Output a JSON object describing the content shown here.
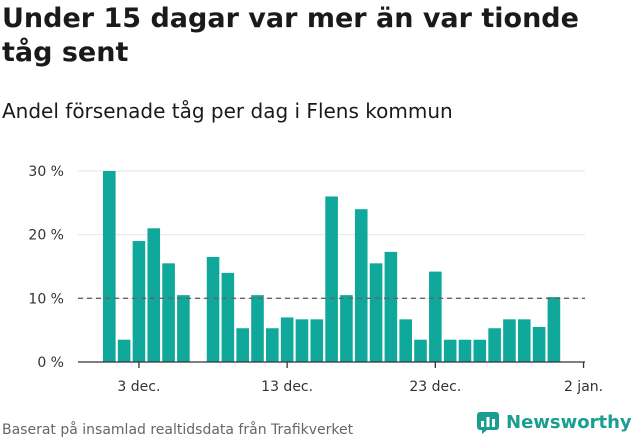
{
  "title": "Under 15 dagar var mer än var tionde tåg sent",
  "subtitle": "Andel försenade tåg per dag i Flens kommun",
  "footer": "Baserat på insamlad realtidsdata från Trafikverket",
  "brand": {
    "name": "Newsworthy",
    "icon": "newsworthy-logo-icon",
    "color": "#1a9e8f"
  },
  "colors": {
    "bar": "#0fa89b",
    "reference_line": "#666666",
    "axis": "#333333",
    "grid": "#e6e6e6"
  },
  "chart_data": {
    "type": "bar",
    "x_start": "2023-12-01",
    "x": [
      "2023-12-01",
      "2023-12-02",
      "2023-12-03",
      "2023-12-04",
      "2023-12-05",
      "2023-12-06",
      "2023-12-07",
      "2023-12-08",
      "2023-12-09",
      "2023-12-10",
      "2023-12-11",
      "2023-12-12",
      "2023-12-13",
      "2023-12-14",
      "2023-12-15",
      "2023-12-16",
      "2023-12-17",
      "2023-12-18",
      "2023-12-19",
      "2023-12-20",
      "2023-12-21",
      "2023-12-22",
      "2023-12-23",
      "2023-12-24",
      "2023-12-25",
      "2023-12-26",
      "2023-12-27",
      "2023-12-28",
      "2023-12-29",
      "2023-12-30",
      "2023-12-31"
    ],
    "values": [
      30,
      3.5,
      19,
      21,
      15.5,
      10.5,
      null,
      16.5,
      14,
      5.3,
      10.5,
      5.3,
      7,
      6.7,
      6.7,
      26,
      10.5,
      24,
      15.5,
      17.3,
      6.7,
      3.5,
      14.2,
      3.5,
      3.5,
      3.5,
      5.3,
      6.7,
      6.7,
      5.5,
      10.2
    ],
    "ylim": [
      0,
      30
    ],
    "yticks": [
      0,
      10,
      20,
      30
    ],
    "ytick_labels": [
      "0 %",
      "10 %",
      "20 %",
      "30 %"
    ],
    "xticks": [
      "2023-12-03",
      "2023-12-13",
      "2023-12-23",
      "2024-01-02"
    ],
    "xtick_labels": [
      "3 dec.",
      "13 dec.",
      "23 dec.",
      "2 jan."
    ],
    "reference_line": {
      "y": 10,
      "style": "dashed"
    },
    "grid": true,
    "xlabel": "",
    "ylabel": ""
  }
}
